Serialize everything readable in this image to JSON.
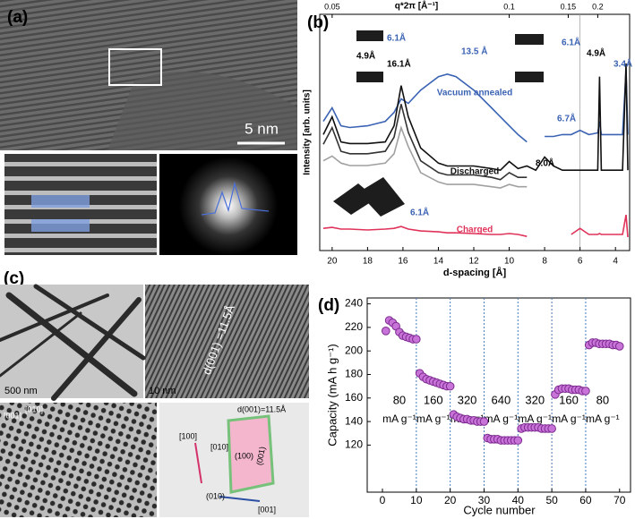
{
  "figure": {
    "a": {
      "label": "(a)",
      "scale_bar": "5 nm"
    },
    "c": {
      "label": "(c)",
      "scale_bar_left": "500 nm",
      "scale_bar_right": "10 nm",
      "spacing": "d(001) =11.5Å",
      "image_labels": [
        "[001]",
        "[010]"
      ],
      "model_labels": [
        "d(001)=11.5Å",
        "[100]",
        "[010]",
        "(100)",
        "(001)",
        "(010)",
        "[001]"
      ]
    }
  },
  "chart_data": [
    {
      "type": "line",
      "panel_label": "(b)",
      "xlabel": "d-spacing [Å]",
      "ylabel": "Intensity [arb. units]",
      "x2label": "q*2π [Å⁻¹]",
      "xlim": [
        20.7,
        3.2
      ],
      "ylim": [
        0,
        100
      ],
      "xticks": [
        20,
        18,
        16,
        14,
        12,
        10,
        8,
        6,
        4
      ],
      "x2ticks": [
        {
          "value": 20,
          "label": "0.05"
        },
        {
          "value": 10,
          "label": "0.1"
        },
        {
          "value": 6.667,
          "label": "0.15"
        },
        {
          "value": 5,
          "label": "0.2"
        }
      ],
      "x": [
        20.5,
        20,
        19.5,
        19,
        18,
        17,
        16.5,
        16.1,
        15.7,
        15,
        14,
        13.5,
        13,
        12,
        11,
        10.5,
        10,
        9.5,
        9,
        8.5,
        8,
        7.5,
        7,
        6.5,
        6,
        5.5,
        5,
        4.9,
        4.8,
        4.5,
        4,
        3.6,
        3.4,
        3.3
      ],
      "series": [
        {
          "name": "Vacuum annealed",
          "color": "#3b63b3",
          "values": [
            54.7,
            60.4,
            52.8,
            52.1,
            52.8,
            54.7,
            58.5,
            64.2,
            62.3,
            67.9,
            73.6,
            74.7,
            73.6,
            67.9,
            60.4,
            56.6,
            52.8,
            49.1,
            46.0,
            null,
            48.3,
            48.3,
            49.1,
            49.1,
            50.9,
            49.1,
            49.8,
            54.7,
            49.1,
            49.1,
            49.1,
            49.1,
            76.2,
            49.1
          ]
        },
        {
          "name": "Discharged",
          "color": "#111111",
          "values": [
            49.1,
            56.6,
            46.0,
            45.3,
            45.3,
            46.0,
            52.8,
            69.8,
            56.6,
            43.4,
            37.0,
            35.8,
            35.8,
            35.8,
            34.7,
            34.0,
            37.7,
            34.7,
            35.8,
            34.0,
            39.6,
            35.8,
            34.0,
            34.0,
            34.0,
            34.0,
            34.0,
            73.6,
            34.0,
            34.0,
            34.0,
            34.0,
            79.2,
            34.0
          ]
        },
        {
          "color": "#333333",
          "values": [
            45,
            52,
            42,
            41,
            41,
            42,
            48,
            62,
            50,
            38,
            33,
            32,
            32,
            32,
            31,
            30,
            33,
            31,
            31,
            null,
            null,
            null,
            null,
            null,
            null,
            null,
            null,
            null,
            null,
            null,
            null,
            null,
            null,
            null
          ]
        },
        {
          "color": "#a0a0a0",
          "values": [
            38,
            40,
            37,
            36,
            36,
            37,
            41,
            52,
            44,
            33,
            29,
            28,
            28,
            28,
            27,
            26.5,
            28,
            27,
            27,
            null,
            null,
            null,
            null,
            null,
            null,
            null,
            null,
            null,
            null,
            null,
            null,
            null,
            null,
            null
          ]
        },
        {
          "name": "Charged",
          "color": "#e0335a",
          "values": [
            9.4,
            9.8,
            9.1,
            9.1,
            8.7,
            9.1,
            9.4,
            10.2,
            9.1,
            8.3,
            7.9,
            7.5,
            7.5,
            7.2,
            6.8,
            6.8,
            7.2,
            6.8,
            6.0,
            null,
            null,
            null,
            null,
            6.8,
            9.4,
            6.8,
            6.8,
            7.2,
            6.8,
            6.8,
            6.8,
            6.8,
            15.1,
            5.7
          ]
        }
      ],
      "annotations": [
        "6.1Å",
        "4.9Å",
        "16.1Å",
        "13.5 Å",
        "6.1Å",
        "4.9Å",
        "3.4Å",
        "6.7Å",
        "8.0Å",
        "6.1Å"
      ]
    },
    {
      "type": "scatter",
      "panel_label": "(d)",
      "xlabel": "Cycle number",
      "ylabel": "Capacity (mA h g⁻¹)",
      "xlim": [
        -4.5,
        73.5
      ],
      "ylim": [
        80,
        245
      ],
      "xticks": [
        0,
        10,
        20,
        30,
        40,
        50,
        60,
        70
      ],
      "yticks": [
        120,
        140,
        160,
        180,
        200,
        220,
        240
      ],
      "dividers": [
        10,
        20,
        30,
        40,
        50,
        60
      ],
      "color": "#c873d8",
      "edge_color": "#7d2a90",
      "x": [
        1,
        2,
        3,
        4,
        5,
        6,
        7,
        8,
        9,
        10,
        11,
        12,
        13,
        14,
        15,
        16,
        17,
        18,
        19,
        20,
        21,
        22,
        23,
        24,
        25,
        26,
        27,
        28,
        29,
        30,
        31,
        32,
        33,
        34,
        35,
        36,
        37,
        38,
        39,
        40,
        41,
        42,
        43,
        44,
        45,
        46,
        47,
        48,
        49,
        50,
        51,
        52,
        53,
        54,
        55,
        56,
        57,
        58,
        59,
        60,
        61,
        62,
        63,
        64,
        65,
        66,
        67,
        68,
        69,
        70
      ],
      "values": [
        217,
        226,
        224,
        221,
        216,
        213,
        212,
        211,
        210,
        210,
        181,
        178,
        176,
        175,
        174,
        173,
        172,
        171,
        170,
        170,
        146,
        144,
        143,
        142,
        142,
        141,
        141,
        140,
        140,
        140,
        126,
        125,
        125,
        125,
        124,
        124,
        124,
        124,
        124,
        124,
        134,
        135,
        135,
        135,
        135,
        135,
        134,
        134,
        134,
        134,
        163,
        167,
        168,
        168,
        168,
        167,
        167,
        167,
        166,
        166,
        205,
        207,
        207,
        206,
        206,
        206,
        206,
        205,
        205,
        204
      ],
      "annotations": [
        {
          "text": "80",
          "unit": "mA g⁻¹"
        },
        {
          "text": "160",
          "unit": "mA g⁻¹"
        },
        {
          "text": "320",
          "unit": "mA g⁻¹"
        },
        {
          "text": "640",
          "unit": "mA g⁻¹"
        },
        {
          "text": "320",
          "unit": "mA g⁻¹"
        },
        {
          "text": "160",
          "unit": "mA g⁻¹"
        },
        {
          "text": "80",
          "unit": "mA g⁻¹"
        }
      ]
    }
  ]
}
